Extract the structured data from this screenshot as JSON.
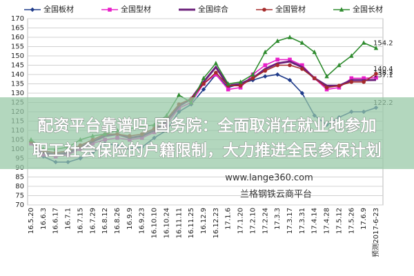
{
  "chart_data": {
    "type": "line",
    "categories": [
      "16.5.20",
      "16.6.3",
      "16.6.17",
      "16.7.1",
      "16.7.15",
      "16.7.29",
      "16.8.12",
      "16.8.26",
      "16.9.9",
      "16.9.23",
      "16.10.10",
      "16.10.24",
      "16.11.11",
      "16.11.25",
      "16.12.9",
      "16.12.23",
      "17.1.6",
      "17.1.20",
      "17.2.10",
      "17.2.24",
      "17.3.3",
      "17.3.17",
      "17.3.31",
      "17.4.14",
      "17.4.28",
      "17.5.12",
      "17.5.26",
      "17.6.9",
      "预测2017-6-23"
    ],
    "series": [
      {
        "name": "全国板材",
        "color": "#1f3b8a",
        "marker": "diamond",
        "end_label": "122.2",
        "values": [
          104,
          96,
          93,
          93,
          95,
          98,
          103,
          102,
          100,
          101,
          106,
          110,
          120,
          124,
          132,
          140,
          133,
          135,
          137,
          139,
          140,
          137,
          130,
          118,
          113,
          117,
          120,
          120,
          122.2
        ]
      },
      {
        "name": "全国型材",
        "color": "#e81ec8",
        "marker": "square",
        "end_label": "138.3",
        "values": [
          103,
          97,
          96,
          97,
          100,
          103,
          105,
          106,
          105,
          106,
          109,
          113,
          122,
          125,
          135,
          140,
          132,
          133,
          140,
          145,
          148,
          148,
          145,
          138,
          132,
          133,
          138,
          138,
          138.3
        ]
      },
      {
        "name": "全国综合",
        "color": "#6b1f7a",
        "marker": "none",
        "end_label": "137.1",
        "values": [
          104,
          98,
          97,
          98,
          101,
          104,
          107,
          108,
          106,
          107,
          110,
          115,
          123,
          127,
          136,
          144,
          134,
          135,
          138,
          143,
          146,
          147,
          144,
          138,
          134,
          134,
          137,
          137,
          137.1
        ]
      },
      {
        "name": "全国管材",
        "color": "#a52a2a",
        "marker": "circle",
        "end_label": "140.4",
        "values": [
          104,
          99,
          98,
          99,
          102,
          105,
          108,
          108,
          107,
          108,
          111,
          116,
          124,
          127,
          135,
          141,
          134,
          134,
          138,
          142,
          145,
          145,
          143,
          138,
          133,
          134,
          136,
          136,
          140.4
        ]
      },
      {
        "name": "全国长材",
        "color": "#2e8b2e",
        "marker": "triangle",
        "end_label": "154.2",
        "values": [
          105,
          100,
          100,
          101,
          105,
          107,
          108,
          110,
          111,
          112,
          113,
          118,
          129,
          125,
          138,
          146,
          135,
          136,
          140,
          152,
          158,
          160,
          157,
          152,
          139,
          145,
          150,
          157,
          154.2
        ]
      }
    ],
    "ylim": [
      70,
      170
    ],
    "yticks": [
      70,
      75,
      80,
      85,
      90,
      95,
      100,
      105,
      110,
      115,
      120,
      125,
      130,
      135,
      140,
      145,
      150,
      155,
      160,
      165,
      170
    ],
    "grid": true,
    "watermarks": [
      "www.lange360.com",
      "兰格钢铁云商平台"
    ]
  },
  "overlay": {
    "lines": [
      "配资平台靠谱吗 国务院：全面取消在就业地参加",
      "职工社会保险的户籍限制，大力推进全民参保计划"
    ]
  }
}
